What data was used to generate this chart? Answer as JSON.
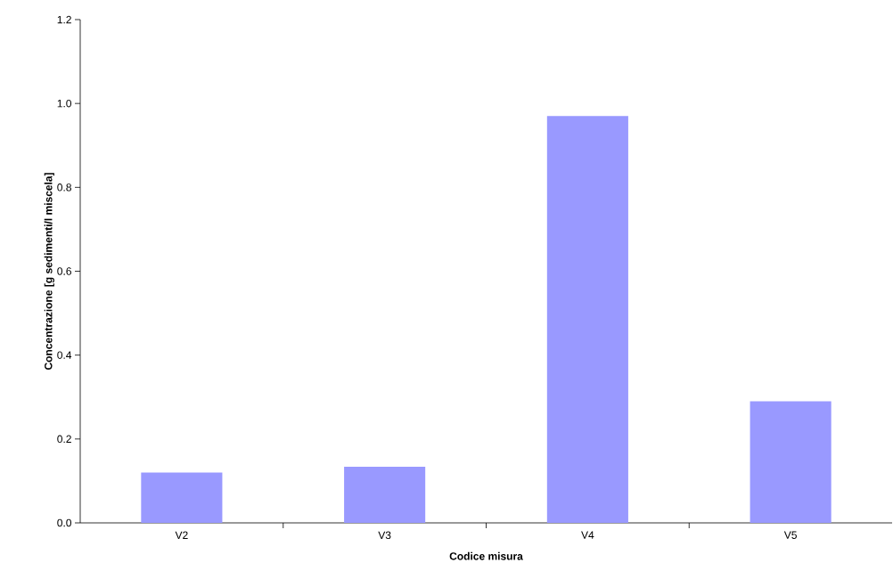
{
  "chart_data": {
    "type": "bar",
    "xlabel": "Codice misura",
    "ylabel": "Concentrazione [g sedimenti/l miscela]",
    "categories": [
      "V2",
      "V3",
      "V4",
      "V5"
    ],
    "values": [
      0.12,
      0.134,
      0.97,
      0.29
    ],
    "color": "#9999ff",
    "ylim": [
      0,
      1.2
    ],
    "yticks": [
      {
        "value": 0,
        "label": "0.0"
      },
      {
        "value": 0.2,
        "label": "0.2"
      },
      {
        "value": 0.4,
        "label": "0.4"
      },
      {
        "value": 0.6,
        "label": "0.6"
      },
      {
        "value": 0.8,
        "label": "0.8"
      },
      {
        "value": 1.0,
        "label": "1.0"
      },
      {
        "value": 1.2,
        "label": "1.2"
      }
    ],
    "grid": false
  }
}
